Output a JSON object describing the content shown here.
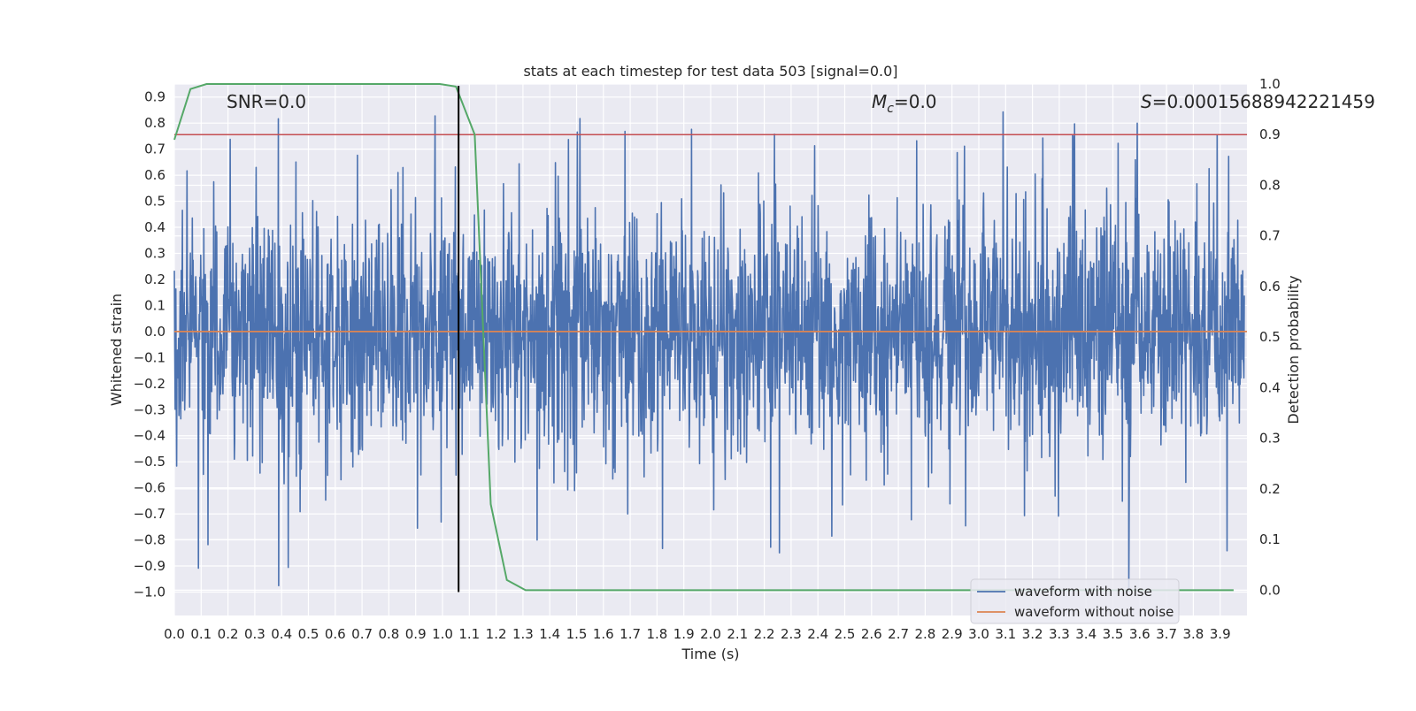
{
  "chart_data": {
    "type": "line",
    "title": "stats at each timestep for test data 503 [signal=0.0]",
    "xlabel": "Time (s)",
    "ylabel": "Whitened strain",
    "ylabel_right": "Detection probability",
    "xlim": [
      0.0,
      4.0
    ],
    "ylim": [
      -1.09,
      0.95
    ],
    "ylim_right": [
      -0.05,
      1.0
    ],
    "x_ticks": [
      "0.0",
      "0.1",
      "0.2",
      "0.3",
      "0.4",
      "0.5",
      "0.6",
      "0.7",
      "0.8",
      "0.9",
      "1.0",
      "1.1",
      "1.2",
      "1.3",
      "1.4",
      "1.5",
      "1.6",
      "1.7",
      "1.8",
      "1.9",
      "2.0",
      "2.1",
      "2.2",
      "2.3",
      "2.4",
      "2.5",
      "2.6",
      "2.7",
      "2.8",
      "2.9",
      "3.0",
      "3.1",
      "3.2",
      "3.3",
      "3.4",
      "3.5",
      "3.6",
      "3.7",
      "3.8",
      "3.9"
    ],
    "y_ticks": [
      "0.9",
      "0.8",
      "0.7",
      "0.6",
      "0.5",
      "0.4",
      "0.3",
      "0.2",
      "0.1",
      "0.0",
      "−0.1",
      "−0.2",
      "−0.3",
      "−0.4",
      "−0.5",
      "−0.6",
      "−0.7",
      "−0.8",
      "−0.9",
      "−1.0"
    ],
    "y_ticks_right": [
      "1.0",
      "0.9",
      "0.8",
      "0.7",
      "0.6",
      "0.5",
      "0.4",
      "0.3",
      "0.2",
      "0.1",
      "0.0"
    ],
    "annotations": {
      "snr": "SNR=0.0",
      "mc_symbol": "M",
      "mc_sub": "c",
      "mc_value": "=0.0",
      "s_symbol": "S",
      "s_value": "=0.00015688942221459"
    },
    "series": [
      {
        "name": "waveform with noise",
        "color": "#4c72b0",
        "note": "dense noise, roughly within -0.7 to 0.86, occasional dips to -1.0"
      },
      {
        "name": "waveform without noise",
        "color": "#dd8452",
        "values_constant": 0.0
      }
    ],
    "threshold_line": {
      "value_right": 0.9,
      "color": "#c44e52"
    },
    "marker_line": {
      "x": 1.06,
      "color": "#000000"
    },
    "detection_probability": {
      "color": "#55a868",
      "x": [
        0.0,
        0.06,
        0.12,
        0.18,
        0.25,
        0.31,
        0.37,
        0.43,
        0.5,
        0.56,
        0.62,
        0.68,
        0.74,
        0.8,
        0.87,
        0.93,
        0.99,
        1.05,
        1.12,
        1.18,
        1.24,
        1.31,
        1.37,
        1.43,
        3.95
      ],
      "y": [
        0.89,
        0.99,
        1.0,
        1.0,
        1.0,
        1.0,
        1.0,
        1.0,
        1.0,
        1.0,
        1.0,
        1.0,
        1.0,
        1.0,
        1.0,
        1.0,
        1.0,
        0.995,
        0.9,
        0.17,
        0.02,
        0.0,
        0.0,
        0.0,
        0.0
      ]
    },
    "legend": {
      "placement": "lower-right",
      "entries": [
        "waveform with noise",
        "waveform without noise"
      ]
    },
    "grid": true,
    "colors": {
      "axes_bg": "#eaeaf2",
      "grid": "#ffffff"
    }
  }
}
